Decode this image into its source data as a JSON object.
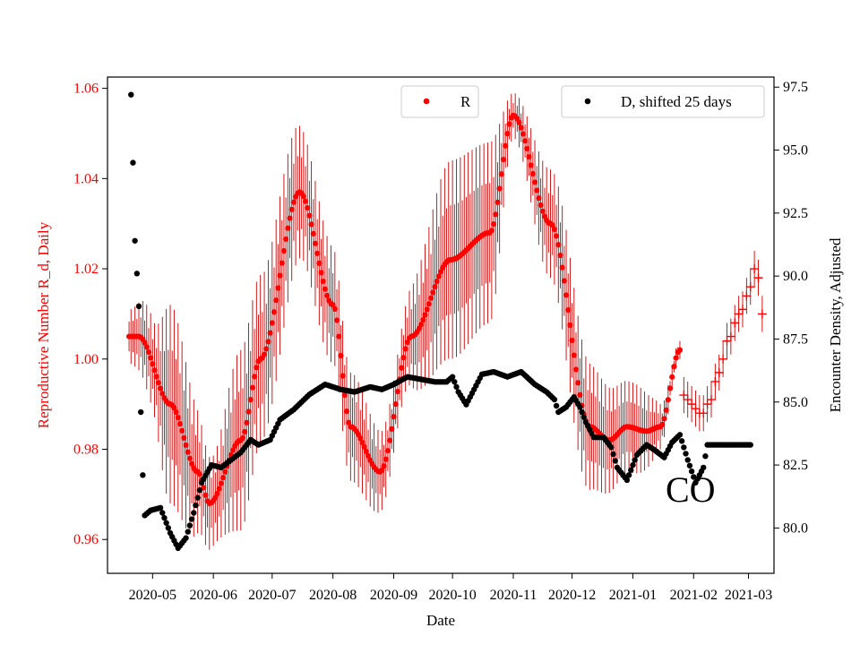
{
  "chart_data": {
    "type": "scatter",
    "xlabel": "Date",
    "ylabel_left": "Reproductive Number R_d, Daily",
    "ylabel_right": "Encounter Density, Adjusted",
    "annotation": "CO",
    "x_range": [
      "2020-04-08",
      "2021-03-14"
    ],
    "x_ticks": [
      "2020-05",
      "2020-06",
      "2020-07",
      "2020-08",
      "2020-09",
      "2020-10",
      "2020-11",
      "2020-12",
      "2021-01",
      "2021-02",
      "2021-03"
    ],
    "y_left_range": [
      0.9525,
      1.0625
    ],
    "y_left_ticks": [
      "0.96",
      "0.98",
      "1.00",
      "1.02",
      "1.04",
      "1.06"
    ],
    "y_right_range": [
      78.2,
      97.9
    ],
    "y_right_ticks": [
      "80.0",
      "82.5",
      "85.0",
      "87.5",
      "90.0",
      "92.5",
      "95.0",
      "97.5"
    ],
    "colors": {
      "R": "#ff0000",
      "D": "#000000"
    },
    "legend": {
      "left": "R",
      "right": "D, shifted 25 days"
    },
    "legend_positions": {
      "left": "upper-center",
      "right": "upper-right"
    },
    "series": [
      {
        "name": "R",
        "axis": "left",
        "marker": "dot",
        "anchors": [
          [
            "2020-04-19",
            1.005
          ],
          [
            "2020-04-24",
            1.005
          ],
          [
            "2020-05-10",
            0.99
          ],
          [
            "2020-05-24",
            0.975
          ],
          [
            "2020-05-30",
            0.968
          ],
          [
            "2020-06-15",
            0.982
          ],
          [
            "2020-06-25",
            1.0
          ],
          [
            "2020-07-15",
            1.037
          ],
          [
            "2020-08-01",
            1.012
          ],
          [
            "2020-08-10",
            0.985
          ],
          [
            "2020-08-25",
            0.975
          ],
          [
            "2020-09-10",
            1.005
          ],
          [
            "2020-09-30",
            1.022
          ],
          [
            "2020-10-20",
            1.028
          ],
          [
            "2020-11-01",
            1.054
          ],
          [
            "2020-11-20",
            1.03
          ],
          [
            "2020-12-10",
            0.985
          ],
          [
            "2020-12-20",
            0.982
          ],
          [
            "2020-12-29",
            0.985
          ],
          [
            "2021-01-08",
            0.984
          ],
          [
            "2021-01-15",
            0.985
          ],
          [
            "2021-01-25",
            1.002
          ]
        ]
      },
      {
        "name": "R (uncertainty band)",
        "axis": "left",
        "style": "error bars",
        "half_width_anchors": [
          [
            "2020-04-19",
            0.006
          ],
          [
            "2020-05-01",
            0.01
          ],
          [
            "2020-05-10",
            0.022
          ],
          [
            "2020-06-01",
            0.01
          ],
          [
            "2020-06-15",
            0.02
          ],
          [
            "2020-07-01",
            0.018
          ],
          [
            "2020-07-20",
            0.014
          ],
          [
            "2020-08-10",
            0.012
          ],
          [
            "2020-09-01",
            0.008
          ],
          [
            "2020-10-01",
            0.022
          ],
          [
            "2020-10-20",
            0.02
          ],
          [
            "2020-11-01",
            0.005
          ],
          [
            "2020-11-20",
            0.012
          ],
          [
            "2020-12-01",
            0.015
          ],
          [
            "2021-01-01",
            0.01
          ],
          [
            "2021-01-25",
            0.002
          ]
        ]
      },
      {
        "name": "R (projected)",
        "axis": "left",
        "marker": "plus",
        "points": [
          [
            "2021-01-27",
            0.992
          ],
          [
            "2021-01-29",
            0.991
          ],
          [
            "2021-01-31",
            0.99
          ],
          [
            "2021-02-02",
            0.989
          ],
          [
            "2021-02-04",
            0.988
          ],
          [
            "2021-02-06",
            0.988
          ],
          [
            "2021-02-08",
            0.99
          ],
          [
            "2021-02-10",
            0.991
          ],
          [
            "2021-02-12",
            0.995
          ],
          [
            "2021-02-14",
            0.997
          ],
          [
            "2021-02-16",
            1.0
          ],
          [
            "2021-02-18",
            1.004
          ],
          [
            "2021-02-20",
            1.005
          ],
          [
            "2021-02-22",
            1.008
          ],
          [
            "2021-02-24",
            1.01
          ],
          [
            "2021-02-26",
            1.011
          ],
          [
            "2021-02-28",
            1.014
          ],
          [
            "2021-03-02",
            1.016
          ],
          [
            "2021-03-04",
            1.02
          ],
          [
            "2021-03-06",
            1.018
          ],
          [
            "2021-03-08",
            1.01
          ]
        ]
      },
      {
        "name": "D, shifted 25 days",
        "axis": "right",
        "marker": "dot",
        "points": [
          [
            "2020-04-20",
            97.2
          ],
          [
            "2020-04-21",
            94.5
          ],
          [
            "2020-04-22",
            91.4
          ],
          [
            "2020-04-24",
            88.8
          ],
          [
            "2020-04-25",
            84.6
          ],
          [
            "2020-04-26",
            82.1
          ],
          [
            "2020-04-27",
            80.5
          ],
          [
            "2020-04-30",
            80.7
          ],
          [
            "2020-05-05",
            80.8
          ],
          [
            "2020-05-10",
            79.8
          ],
          [
            "2020-05-14",
            79.2
          ],
          [
            "2020-05-18",
            79.6
          ],
          [
            "2020-05-22",
            80.6
          ],
          [
            "2020-05-26",
            81.8
          ],
          [
            "2020-05-31",
            82.5
          ],
          [
            "2020-06-05",
            82.4
          ],
          [
            "2020-06-10",
            82.7
          ],
          [
            "2020-06-15",
            83.0
          ],
          [
            "2020-06-20",
            83.5
          ],
          [
            "2020-06-24",
            83.3
          ],
          [
            "2020-06-30",
            83.5
          ],
          [
            "2020-07-05",
            84.3
          ],
          [
            "2020-07-12",
            84.7
          ],
          [
            "2020-07-20",
            85.3
          ],
          [
            "2020-07-28",
            85.7
          ],
          [
            "2020-08-05",
            85.5
          ],
          [
            "2020-08-12",
            85.4
          ],
          [
            "2020-08-20",
            85.6
          ],
          [
            "2020-08-26",
            85.5
          ],
          [
            "2020-09-01",
            85.7
          ],
          [
            "2020-09-08",
            86.0
          ],
          [
            "2020-09-15",
            85.9
          ],
          [
            "2020-09-22",
            85.8
          ],
          [
            "2020-09-28",
            85.8
          ],
          [
            "2020-10-01",
            86.0
          ],
          [
            "2020-10-04",
            85.4
          ],
          [
            "2020-10-08",
            84.9
          ],
          [
            "2020-10-12",
            85.5
          ],
          [
            "2020-10-16",
            86.1
          ],
          [
            "2020-10-22",
            86.2
          ],
          [
            "2020-10-29",
            86.0
          ],
          [
            "2020-11-05",
            86.2
          ],
          [
            "2020-11-12",
            85.7
          ],
          [
            "2020-11-18",
            85.4
          ],
          [
            "2020-11-22",
            85.1
          ],
          [
            "2020-11-24",
            84.6
          ],
          [
            "2020-11-28",
            84.8
          ],
          [
            "2020-12-02",
            85.2
          ],
          [
            "2020-12-05",
            84.8
          ],
          [
            "2020-12-08",
            84.2
          ],
          [
            "2020-12-12",
            83.6
          ],
          [
            "2020-12-17",
            83.6
          ],
          [
            "2020-12-21",
            83.2
          ],
          [
            "2020-12-24",
            82.4
          ],
          [
            "2020-12-29",
            81.9
          ],
          [
            "2021-01-03",
            82.9
          ],
          [
            "2021-01-08",
            83.3
          ],
          [
            "2021-01-12",
            83.1
          ],
          [
            "2021-01-17",
            82.8
          ],
          [
            "2021-01-21",
            83.4
          ],
          [
            "2021-01-25",
            83.7
          ],
          [
            "2021-01-29",
            82.7
          ],
          [
            "2021-02-02",
            81.8
          ],
          [
            "2021-02-06",
            82.4
          ],
          [
            "2021-02-08",
            83.3
          ],
          [
            "2021-02-15",
            83.3
          ],
          [
            "2021-02-22",
            83.3
          ],
          [
            "2021-03-02",
            83.3
          ]
        ]
      }
    ]
  }
}
